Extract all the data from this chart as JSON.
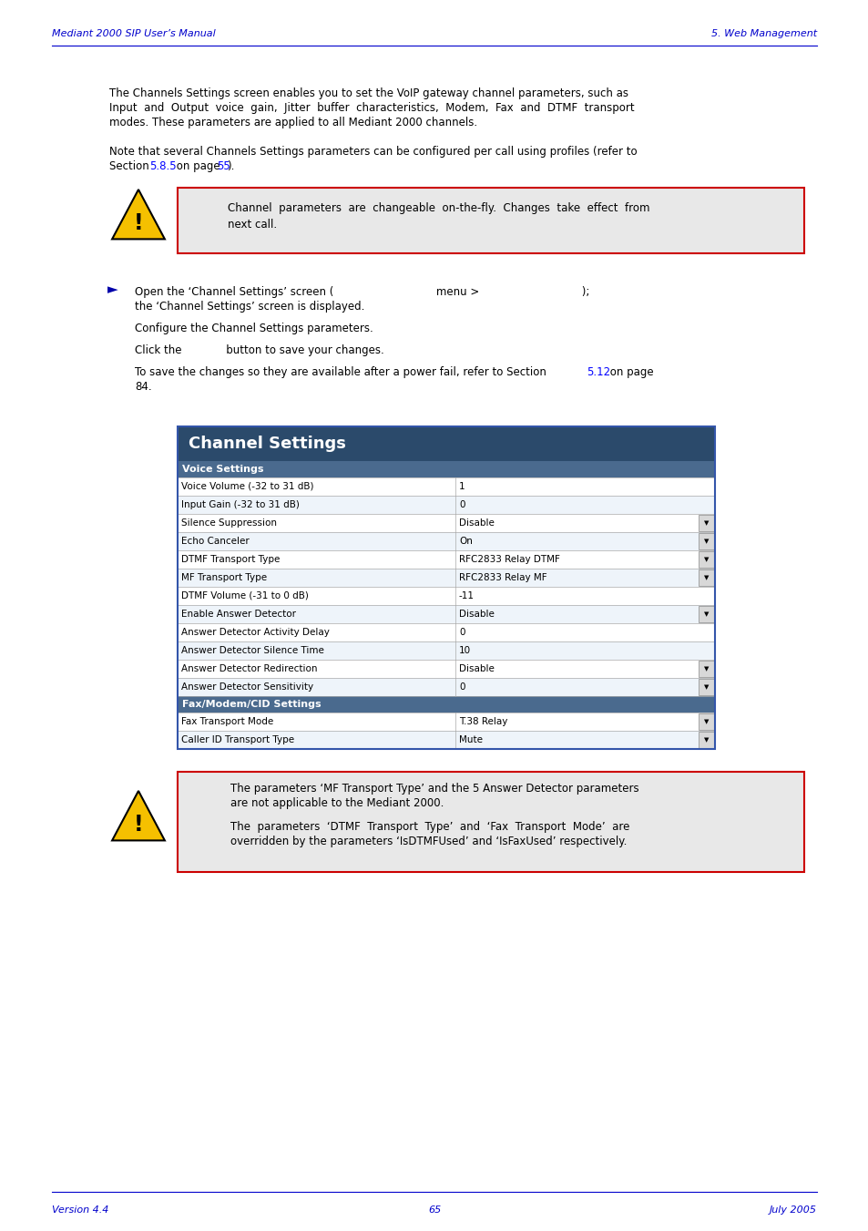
{
  "header_left": "Mediant 2000 SIP User’s Manual",
  "header_right": "5. Web Management",
  "footer_left": "Version 4.4",
  "footer_center": "65",
  "footer_right": "July 2005",
  "header_color": "#0000CC",
  "link_color": "#0000FF",
  "warning_bg": "#E8E8E8",
  "warning_border": "#CC0000",
  "table_header_color": "#2B4A6B",
  "table_section_color": "#2B4A6B",
  "table_row_even": "#FFFFFF",
  "table_row_odd": "#EEF4FA",
  "table_border": "#888888",
  "table_title": "Channel Settings",
  "table_section1_text": "Voice Settings",
  "table_section2_text": "Fax/Modem/CID Settings",
  "table_rows": [
    [
      "Voice Volume (-32 to 31 dB)",
      "1",
      false
    ],
    [
      "Input Gain (-32 to 31 dB)",
      "0",
      false
    ],
    [
      "Silence Suppression",
      "Disable",
      true
    ],
    [
      "Echo Canceler",
      "On",
      true
    ],
    [
      "DTMF Transport Type",
      "RFC2833 Relay DTMF",
      true
    ],
    [
      "MF Transport Type",
      "RFC2833 Relay MF",
      true
    ],
    [
      "DTMF Volume (-31 to 0 dB)",
      "-11",
      false
    ],
    [
      "Enable Answer Detector",
      "Disable",
      true
    ],
    [
      "Answer Detector Activity Delay",
      "0",
      false
    ],
    [
      "Answer Detector Silence Time",
      "10",
      false
    ],
    [
      "Answer Detector Redirection",
      "Disable",
      true
    ],
    [
      "Answer Detector Sensitivity",
      "0",
      true
    ]
  ],
  "table_rows2": [
    [
      "Fax Transport Mode",
      "T.38 Relay",
      true
    ],
    [
      "Caller ID Transport Type",
      "Mute",
      true
    ]
  ]
}
